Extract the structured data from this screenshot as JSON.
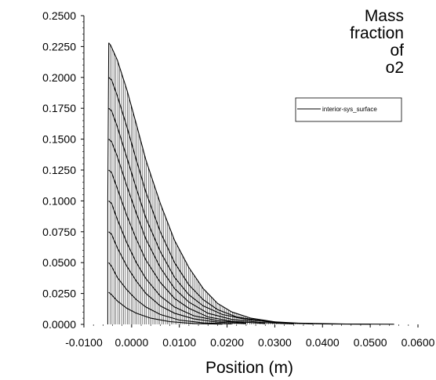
{
  "chart_data": {
    "type": "line",
    "title": "Mass fraction of o2",
    "title_lines": [
      "Mass",
      "fraction",
      "of",
      "o2"
    ],
    "xlabel": "Position (m)",
    "ylabel": "",
    "xlim": [
      -0.01,
      0.06
    ],
    "ylim": [
      0,
      0.25
    ],
    "x_ticks": [
      -0.01,
      0.0,
      0.01,
      0.02,
      0.03,
      0.04,
      0.05,
      0.06
    ],
    "x_tick_labels": [
      "-0.0100",
      "0.0000",
      "0.0100",
      "0.0200",
      "0.0300",
      "0.0400",
      "0.0500",
      "0.0600"
    ],
    "y_ticks": [
      0,
      0.025,
      0.05,
      0.075,
      0.1,
      0.125,
      0.15,
      0.175,
      0.2,
      0.225,
      0.25
    ],
    "y_tick_labels": [
      "0.0000",
      "0.0250",
      "0.0500",
      "0.0750",
      "0.1000",
      "0.1250",
      "0.1500",
      "0.1750",
      "0.2000",
      "0.2250",
      "0.2500"
    ],
    "grid": false,
    "legend_position": "top-right",
    "series": [
      {
        "name": "interior-sys_surface",
        "color": "#000000",
        "curves": [
          {
            "x": [
              -0.0048,
              -0.0044,
              -0.003,
              -0.001,
              0.001,
              0.003,
              0.006,
              0.009,
              0.012,
              0.015,
              0.018,
              0.021,
              0.025,
              0.03,
              0.035,
              0.045,
              0.055
            ],
            "y": [
              0.228,
              0.226,
              0.214,
              0.19,
              0.162,
              0.133,
              0.098,
              0.068,
              0.046,
              0.029,
              0.017,
              0.01,
              0.005,
              0.002,
              0.001,
              0.0003,
              0.0001
            ]
          },
          {
            "x": [
              -0.0048,
              -0.0042,
              -0.003,
              -0.001,
              0.001,
              0.003,
              0.006,
              0.009,
              0.012,
              0.015,
              0.018,
              0.022,
              0.027,
              0.033,
              0.04,
              0.05
            ],
            "y": [
              0.2,
              0.198,
              0.185,
              0.16,
              0.133,
              0.107,
              0.075,
              0.05,
              0.032,
              0.02,
              0.012,
              0.006,
              0.003,
              0.001,
              0.0004,
              0.0001
            ]
          },
          {
            "x": [
              -0.0048,
              -0.0042,
              -0.003,
              -0.001,
              0.001,
              0.003,
              0.006,
              0.009,
              0.012,
              0.015,
              0.019,
              0.024,
              0.03,
              0.038
            ],
            "y": [
              0.175,
              0.173,
              0.16,
              0.135,
              0.11,
              0.086,
              0.059,
              0.038,
              0.024,
              0.015,
              0.008,
              0.004,
              0.0015,
              0.0004
            ]
          },
          {
            "x": [
              -0.0048,
              -0.0042,
              -0.003,
              -0.001,
              0.001,
              0.003,
              0.006,
              0.009,
              0.012,
              0.016,
              0.021,
              0.027,
              0.034
            ],
            "y": [
              0.15,
              0.148,
              0.136,
              0.112,
              0.09,
              0.069,
              0.046,
              0.029,
              0.018,
              0.009,
              0.004,
              0.0015,
              0.0004
            ]
          },
          {
            "x": [
              -0.0048,
              -0.0042,
              -0.003,
              -0.001,
              0.001,
              0.003,
              0.006,
              0.009,
              0.012,
              0.016,
              0.021,
              0.028
            ],
            "y": [
              0.125,
              0.123,
              0.11,
              0.088,
              0.069,
              0.052,
              0.034,
              0.021,
              0.013,
              0.006,
              0.0025,
              0.0007
            ]
          },
          {
            "x": [
              -0.0048,
              -0.0042,
              -0.003,
              -0.001,
              0.001,
              0.003,
              0.006,
              0.009,
              0.013,
              0.018,
              0.024
            ],
            "y": [
              0.1,
              0.098,
              0.085,
              0.066,
              0.05,
              0.037,
              0.023,
              0.014,
              0.007,
              0.003,
              0.001
            ]
          },
          {
            "x": [
              -0.0048,
              -0.0042,
              -0.003,
              -0.001,
              0.001,
              0.003,
              0.006,
              0.009,
              0.013,
              0.018,
              0.024
            ],
            "y": [
              0.075,
              0.073,
              0.062,
              0.047,
              0.035,
              0.025,
              0.015,
              0.009,
              0.0045,
              0.0018,
              0.0006
            ]
          },
          {
            "x": [
              -0.0048,
              -0.0042,
              -0.003,
              -0.001,
              0.001,
              0.003,
              0.006,
              0.01,
              0.015,
              0.021
            ],
            "y": [
              0.05,
              0.047,
              0.038,
              0.028,
              0.02,
              0.014,
              0.008,
              0.0035,
              0.0012,
              0.0003
            ]
          },
          {
            "x": [
              -0.0048,
              -0.0042,
              -0.003,
              -0.001,
              0.001,
              0.004,
              0.008,
              0.013,
              0.019
            ],
            "y": [
              0.026,
              0.024,
              0.019,
              0.013,
              0.009,
              0.005,
              0.0022,
              0.0007,
              0.0002
            ]
          }
        ]
      }
    ]
  }
}
